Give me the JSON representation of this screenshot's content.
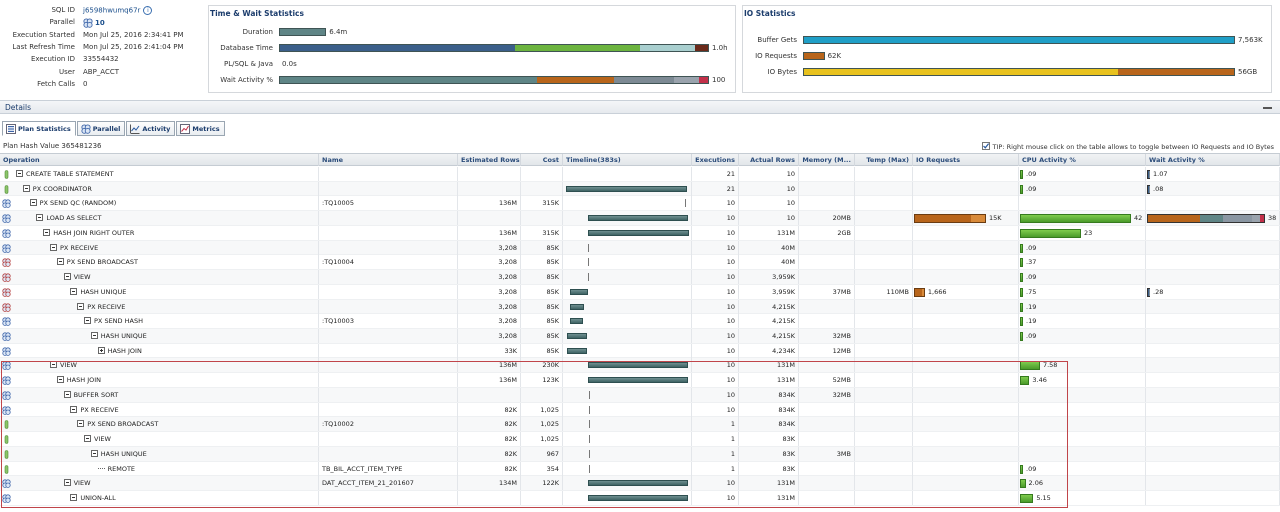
{
  "sql_info": {
    "rows": [
      {
        "label": "SQL ID",
        "value": "j6598hwumq67r",
        "link": true,
        "info_icon": true
      },
      {
        "label": "Parallel",
        "value": "10",
        "parallel_icon": true
      },
      {
        "label": "Execution Started",
        "value": "Mon Jul 25, 2016 2:34:41 PM"
      },
      {
        "label": "Last Refresh Time",
        "value": "Mon Jul 25, 2016 2:41:04 PM"
      },
      {
        "label": "Execution ID",
        "value": "33554432"
      },
      {
        "label": "User",
        "value": "ABP_ACCT"
      },
      {
        "label": "Fetch Calls",
        "value": "0"
      }
    ]
  },
  "time_wait": {
    "title": "Time & Wait Statistics",
    "rows": [
      {
        "label": "Duration",
        "value": "6.4m",
        "fill": 0.11,
        "segments": [
          {
            "color": "#5f8586",
            "w": 1
          }
        ]
      },
      {
        "label": "Database Time",
        "value": "1.0h",
        "fill": 1.0,
        "segments": [
          {
            "color": "#3b5f8a",
            "w": 0.55
          },
          {
            "color": "#6cb43f",
            "w": 0.29
          },
          {
            "color": "#a9cfcf",
            "w": 0.13
          },
          {
            "color": "#6a2a1a",
            "w": 0.03
          }
        ]
      },
      {
        "label": "PL/SQL & Java",
        "value": "0.0s",
        "fill": 0,
        "segments": []
      },
      {
        "label": "Wait Activity %",
        "value": "100",
        "fill": 1.0,
        "segments": [
          {
            "color": "#5f8586",
            "w": 0.6
          },
          {
            "color": "#b8651b",
            "w": 0.18
          },
          {
            "color": "#7d8a94",
            "w": 0.14
          },
          {
            "color": "#9aa3ad",
            "w": 0.06
          },
          {
            "color": "#c3304a",
            "w": 0.02
          }
        ]
      }
    ]
  },
  "io_stats": {
    "title": "IO Statistics",
    "rows": [
      {
        "label": "Buffer Gets",
        "value": "7,563K",
        "fill": 1.0,
        "segments": [
          {
            "color": "#1f9fc7",
            "w": 1
          }
        ]
      },
      {
        "label": "IO Requests",
        "value": "62K",
        "fill": 0.05,
        "segments": [
          {
            "color": "#b8651b",
            "w": 1
          }
        ]
      },
      {
        "label": "IO Bytes",
        "value": "56GB",
        "fill": 1.0,
        "segments": [
          {
            "color": "#e8c21e",
            "w": 0.73
          },
          {
            "color": "#b8651b",
            "w": 0.27
          }
        ]
      }
    ]
  },
  "details": {
    "title": "Details",
    "tabs": [
      {
        "label": "Plan Statistics",
        "icon": "plan-statistics-icon"
      },
      {
        "label": "Parallel",
        "icon": "parallel-icon"
      },
      {
        "label": "Activity",
        "icon": "activity-icon"
      },
      {
        "label": "Metrics",
        "icon": "metrics-icon"
      }
    ],
    "plan_hash": "Plan Hash Value  365481236",
    "tip": "TIP: Right mouse click on the table allows to toggle between IO Requests and IO Bytes"
  },
  "table": {
    "columns": [
      "Operation",
      "Name",
      "Estimated Rows",
      "Cost",
      "Timeline(383s)",
      "Executions",
      "Actual Rows",
      "Memory (M...",
      "Temp (Max)",
      "IO Requests",
      "CPU Activity %",
      "Wait Activity %"
    ],
    "rows": [
      {
        "icon": "query-coordinator-icon",
        "depth": 0,
        "tree": "minus",
        "op": "CREATE TABLE STATEMENT",
        "name": "",
        "est": "",
        "cost": "",
        "tl": [
          0.0,
          0.0
        ],
        "exec": "21",
        "act": "10",
        "mem": "",
        "temp": "",
        "io": "",
        "io_fill": 0,
        "cpu": ".09",
        "cpu_fill": 0.004,
        "wait": "1.07",
        "wait_fill": 0.01
      },
      {
        "icon": "query-coordinator-icon",
        "depth": 1,
        "tree": "minus",
        "op": "PX COORDINATOR",
        "name": "",
        "est": "",
        "cost": "",
        "tl": [
          0.0,
          0.98
        ],
        "exec": "21",
        "act": "10",
        "mem": "",
        "temp": "",
        "io": "",
        "io_fill": 0,
        "cpu": ".09",
        "cpu_fill": 0.004,
        "wait": ".08",
        "wait_fill": 0.005
      },
      {
        "icon": "parallel-server-icon",
        "depth": 2,
        "tree": "minus",
        "op": "PX SEND QC (RANDOM)",
        "name": ":TQ10005",
        "est": "136M",
        "cost": "315K",
        "tl": [
          0.97,
          0.01
        ],
        "exec": "10",
        "act": "10",
        "mem": "",
        "temp": "",
        "io": "",
        "io_fill": 0,
        "cpu": "",
        "cpu_fill": 0,
        "wait": "",
        "wait_fill": 0
      },
      {
        "icon": "parallel-server-icon",
        "depth": 3,
        "tree": "minus",
        "op": "LOAD AS SELECT",
        "name": "",
        "est": "",
        "cost": "",
        "tl": [
          0.18,
          0.81
        ],
        "exec": "10",
        "act": "10",
        "mem": "20MB",
        "temp": "",
        "io": "15K",
        "io_fill": 0.24,
        "cpu": "42",
        "cpu_fill": 1.0,
        "wait": "38",
        "wait_fill": 1.0
      },
      {
        "icon": "parallel-server-icon",
        "depth": 4,
        "tree": "minus",
        "op": "HASH JOIN RIGHT OUTER",
        "name": "",
        "est": "136M",
        "cost": "315K",
        "tl": [
          0.18,
          0.82
        ],
        "exec": "10",
        "act": "131M",
        "mem": "2GB",
        "temp": "",
        "io": "",
        "io_fill": 0,
        "cpu": "23",
        "cpu_fill": 0.55,
        "wait": "",
        "wait_fill": 0
      },
      {
        "icon": "parallel-server-icon",
        "depth": 5,
        "tree": "minus",
        "op": "PX RECEIVE",
        "name": "",
        "est": "3,208",
        "cost": "85K",
        "tl": [
          0.18,
          0.01
        ],
        "exec": "10",
        "act": "40M",
        "mem": "",
        "temp": "",
        "io": "",
        "io_fill": 0,
        "cpu": ".09",
        "cpu_fill": 0.004,
        "wait": "",
        "wait_fill": 0
      },
      {
        "icon": "parallel-server-red-icon",
        "depth": 6,
        "tree": "minus",
        "op": "PX SEND BROADCAST",
        "name": ":TQ10004",
        "est": "3,208",
        "cost": "85K",
        "tl": [
          0.18,
          0.01
        ],
        "exec": "10",
        "act": "40M",
        "mem": "",
        "temp": "",
        "io": "",
        "io_fill": 0,
        "cpu": ".37",
        "cpu_fill": 0.009,
        "wait": "",
        "wait_fill": 0
      },
      {
        "icon": "parallel-server-red-icon",
        "depth": 7,
        "tree": "minus",
        "op": "VIEW",
        "name": "",
        "est": "3,208",
        "cost": "85K",
        "tl": [
          0.18,
          0.01
        ],
        "exec": "10",
        "act": "3,959K",
        "mem": "",
        "temp": "",
        "io": "",
        "io_fill": 0,
        "cpu": ".09",
        "cpu_fill": 0.004,
        "wait": "",
        "wait_fill": 0
      },
      {
        "icon": "parallel-server-red-icon",
        "depth": 8,
        "tree": "minus",
        "op": "HASH UNIQUE",
        "name": "",
        "est": "3,208",
        "cost": "85K",
        "tl": [
          0.03,
          0.15
        ],
        "exec": "10",
        "act": "3,959K",
        "mem": "37MB",
        "temp": "110MB",
        "io": "1,666",
        "io_fill": 0.03,
        "cpu": ".75",
        "cpu_fill": 0.018,
        "wait": ".28",
        "wait_fill": 0.012
      },
      {
        "icon": "parallel-server-red-icon",
        "depth": 9,
        "tree": "minus",
        "op": "PX RECEIVE",
        "name": "",
        "est": "3,208",
        "cost": "85K",
        "tl": [
          0.03,
          0.12
        ],
        "exec": "10",
        "act": "4,215K",
        "mem": "",
        "temp": "",
        "io": "",
        "io_fill": 0,
        "cpu": ".19",
        "cpu_fill": 0.006,
        "wait": "",
        "wait_fill": 0
      },
      {
        "icon": "parallel-server-icon",
        "depth": 10,
        "tree": "minus",
        "op": "PX SEND HASH",
        "name": ":TQ10003",
        "est": "3,208",
        "cost": "85K",
        "tl": [
          0.03,
          0.11
        ],
        "exec": "10",
        "act": "4,215K",
        "mem": "",
        "temp": "",
        "io": "",
        "io_fill": 0,
        "cpu": ".19",
        "cpu_fill": 0.006,
        "wait": "",
        "wait_fill": 0
      },
      {
        "icon": "parallel-server-icon",
        "depth": 11,
        "tree": "minus",
        "op": "HASH UNIQUE",
        "name": "",
        "est": "3,208",
        "cost": "85K",
        "tl": [
          0.01,
          0.16
        ],
        "exec": "10",
        "act": "4,215K",
        "mem": "32MB",
        "temp": "",
        "io": "",
        "io_fill": 0,
        "cpu": ".09",
        "cpu_fill": 0.004,
        "wait": "",
        "wait_fill": 0
      },
      {
        "icon": "parallel-server-icon",
        "depth": 12,
        "tree": "plus",
        "op": "HASH JOIN",
        "name": "",
        "est": "33K",
        "cost": "85K",
        "tl": [
          0.01,
          0.16
        ],
        "exec": "10",
        "act": "4,234K",
        "mem": "12MB",
        "temp": "",
        "io": "",
        "io_fill": 0,
        "cpu": "",
        "cpu_fill": 0,
        "wait": "",
        "wait_fill": 0
      },
      {
        "icon": "parallel-server-icon",
        "depth": 5,
        "tree": "minus",
        "op": "VIEW",
        "name": "",
        "est": "136M",
        "cost": "230K",
        "tl": [
          0.18,
          0.81
        ],
        "exec": "10",
        "act": "131M",
        "mem": "",
        "temp": "",
        "io": "",
        "io_fill": 0,
        "cpu": "7.58",
        "cpu_fill": 0.18,
        "wait": "",
        "wait_fill": 0
      },
      {
        "icon": "parallel-server-icon",
        "depth": 6,
        "tree": "minus",
        "op": "HASH JOIN",
        "name": "",
        "est": "136M",
        "cost": "123K",
        "tl": [
          0.18,
          0.81
        ],
        "exec": "10",
        "act": "131M",
        "mem": "52MB",
        "temp": "",
        "io": "",
        "io_fill": 0,
        "cpu": "3.46",
        "cpu_fill": 0.085,
        "wait": "",
        "wait_fill": 0
      },
      {
        "icon": "parallel-server-icon",
        "depth": 7,
        "tree": "minus",
        "op": "BUFFER SORT",
        "name": "",
        "est": "",
        "cost": "",
        "tl": [
          0.19,
          0.005
        ],
        "exec": "10",
        "act": "834K",
        "mem": "32MB",
        "temp": "",
        "io": "",
        "io_fill": 0,
        "cpu": "",
        "cpu_fill": 0,
        "wait": "",
        "wait_fill": 0
      },
      {
        "icon": "parallel-server-icon",
        "depth": 8,
        "tree": "minus",
        "op": "PX RECEIVE",
        "name": "",
        "est": "82K",
        "cost": "1,025",
        "tl": [
          0.19,
          0.005
        ],
        "exec": "10",
        "act": "834K",
        "mem": "",
        "temp": "",
        "io": "",
        "io_fill": 0,
        "cpu": "",
        "cpu_fill": 0,
        "wait": "",
        "wait_fill": 0
      },
      {
        "icon": "query-coordinator-icon",
        "depth": 9,
        "tree": "minus",
        "op": "PX SEND BROADCAST",
        "name": ":TQ10002",
        "est": "82K",
        "cost": "1,025",
        "tl": [
          0.19,
          0.005
        ],
        "exec": "1",
        "act": "834K",
        "mem": "",
        "temp": "",
        "io": "",
        "io_fill": 0,
        "cpu": "",
        "cpu_fill": 0,
        "wait": "",
        "wait_fill": 0
      },
      {
        "icon": "query-coordinator-icon",
        "depth": 10,
        "tree": "minus",
        "op": "VIEW",
        "name": "",
        "est": "82K",
        "cost": "1,025",
        "tl": [
          0.19,
          0.005
        ],
        "exec": "1",
        "act": "83K",
        "mem": "",
        "temp": "",
        "io": "",
        "io_fill": 0,
        "cpu": "",
        "cpu_fill": 0,
        "wait": "",
        "wait_fill": 0
      },
      {
        "icon": "query-coordinator-icon",
        "depth": 11,
        "tree": "minus",
        "op": "HASH UNIQUE",
        "name": "",
        "est": "82K",
        "cost": "967",
        "tl": [
          0.19,
          0.005
        ],
        "exec": "1",
        "act": "83K",
        "mem": "3MB",
        "temp": "",
        "io": "",
        "io_fill": 0,
        "cpu": "",
        "cpu_fill": 0,
        "wait": "",
        "wait_fill": 0
      },
      {
        "icon": "query-coordinator-icon",
        "depth": 12,
        "tree": "leaf",
        "op": "REMOTE",
        "name": "TB_BIL_ACCT_ITEM_TYPE",
        "est": "82K",
        "cost": "354",
        "tl": [
          0.19,
          0.005
        ],
        "exec": "1",
        "act": "83K",
        "mem": "",
        "temp": "",
        "io": "",
        "io_fill": 0,
        "cpu": ".09",
        "cpu_fill": 0.004,
        "wait": "",
        "wait_fill": 0
      },
      {
        "icon": "parallel-server-icon",
        "depth": 7,
        "tree": "minus",
        "op": "VIEW",
        "name": "DAT_ACCT_ITEM_21_201607",
        "est": "134M",
        "cost": "122K",
        "tl": [
          0.18,
          0.81
        ],
        "exec": "10",
        "act": "131M",
        "mem": "",
        "temp": "",
        "io": "",
        "io_fill": 0,
        "cpu": "2.06",
        "cpu_fill": 0.05,
        "wait": "",
        "wait_fill": 0
      },
      {
        "icon": "parallel-server-icon",
        "depth": 8,
        "tree": "minus",
        "op": "UNION-ALL",
        "name": "",
        "est": "",
        "cost": "",
        "tl": [
          0.18,
          0.81
        ],
        "exec": "10",
        "act": "131M",
        "mem": "",
        "temp": "",
        "io": "",
        "io_fill": 0,
        "cpu": "5.15",
        "cpu_fill": 0.12,
        "wait": "",
        "wait_fill": 0
      }
    ]
  }
}
